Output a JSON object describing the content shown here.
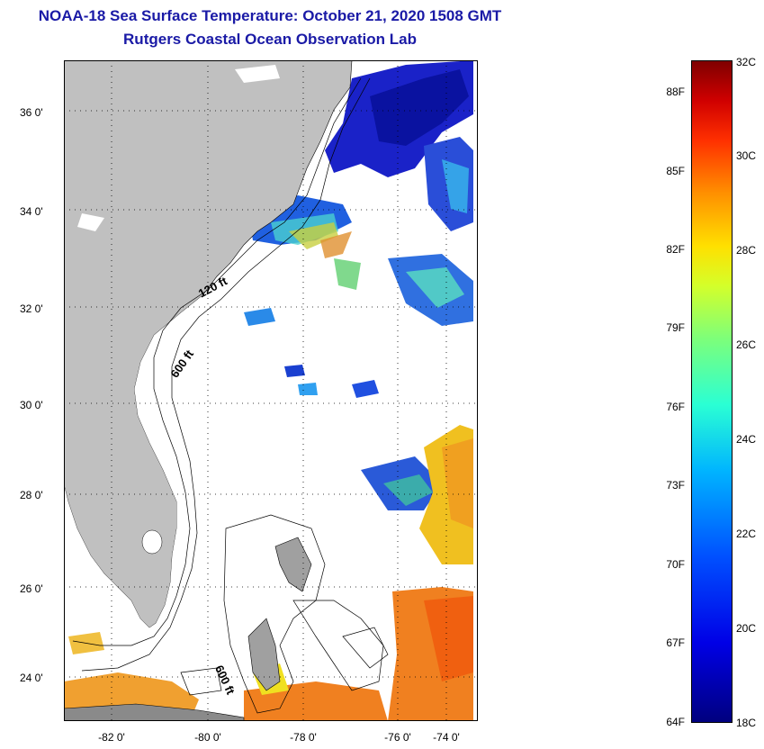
{
  "header": {
    "title": "NOAA-18 Sea Surface Temperature:  October 21, 2020 1508 GMT",
    "subtitle": "Rutgers Coastal Ocean Observation Lab"
  },
  "map": {
    "lat_labels": [
      "36 0'",
      "34 0'",
      "32 0'",
      "30 0'",
      "28 0'",
      "26 0'",
      "24 0'"
    ],
    "lon_labels": [
      "-82 0'",
      "-80 0'",
      "-78 0'",
      "-76 0'",
      "-74 0'"
    ],
    "contour_labels": [
      "120 ft",
      "600 ft",
      "600 ft"
    ],
    "land_color": "#c0c0c0",
    "ocean_color": "#ffffff"
  },
  "colorbar": {
    "fahrenheit_labels": [
      "88F",
      "85F",
      "82F",
      "79F",
      "76F",
      "73F",
      "70F",
      "67F",
      "64F"
    ],
    "celsius_labels": [
      "32C",
      "30C",
      "28C",
      "26C",
      "24C",
      "22C",
      "20C",
      "18C"
    ],
    "range_c": [
      18,
      32
    ],
    "range_f": [
      64,
      88
    ]
  }
}
